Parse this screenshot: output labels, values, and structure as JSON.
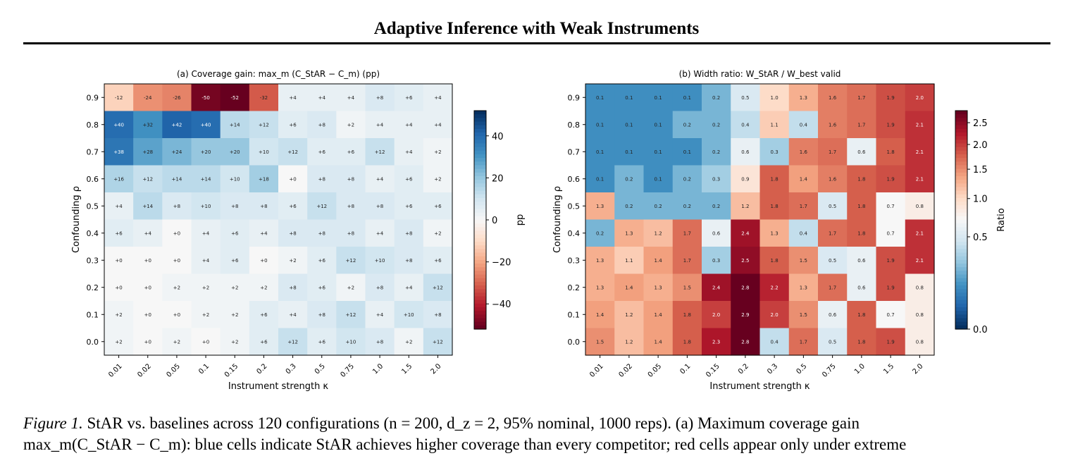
{
  "page": {
    "title": "Adaptive Inference with Weak Instruments"
  },
  "caption": {
    "label": "Figure 1.",
    "line1": "StAR vs. baselines across 120 configurations (n = 200, d_z = 2, 95% nominal, 1000 reps). (a) Maximum coverage gain",
    "line2": "max_m(C_StAR − C_m): blue cells indicate StAR achieves higher coverage than every competitor; red cells appear only under extreme"
  },
  "chart_data": [
    {
      "type": "heatmap",
      "title": "(a) Coverage gain: max_m (C_StAR − C_m) (pp)",
      "xlabel": "Instrument strength κ",
      "ylabel": "Confounding ρ",
      "x_ticks": [
        "0.01",
        "0.02",
        "0.05",
        "0.1",
        "0.15",
        "0.2",
        "0.3",
        "0.5",
        "0.75",
        "1.0",
        "1.5",
        "2.0"
      ],
      "y_ticks": [
        "0.9",
        "0.8",
        "0.7",
        "0.6",
        "0.5",
        "0.4",
        "0.3",
        "0.2",
        "0.1",
        "0.0"
      ],
      "colormap": "RdBu",
      "vmin": -52,
      "vmax": 52,
      "colorbar_label": "pp",
      "colorbar_ticks": [
        40,
        20,
        0,
        -20,
        -40
      ],
      "colorbar_tick_labels": [
        "40",
        "20",
        "0",
        "−20",
        "−40"
      ],
      "cells": [
        [
          "-12",
          "-24",
          "-26",
          "-50",
          "-52",
          "-32",
          "+4",
          "+4",
          "+4",
          "+8",
          "+6",
          "+4"
        ],
        [
          "+40",
          "+32",
          "+42",
          "+40",
          "+14",
          "+12",
          "+6",
          "+8",
          "+2",
          "+4",
          "+4",
          "+4"
        ],
        [
          "+38",
          "+28",
          "+24",
          "+20",
          "+20",
          "+10",
          "+12",
          "+6",
          "+6",
          "+12",
          "+4",
          "+2"
        ],
        [
          "+16",
          "+12",
          "+14",
          "+14",
          "+10",
          "+18",
          "+0",
          "+8",
          "+8",
          "+4",
          "+6",
          "+2"
        ],
        [
          "+4",
          "+14",
          "+8",
          "+10",
          "+8",
          "+8",
          "+6",
          "+12",
          "+8",
          "+8",
          "+6",
          "+6"
        ],
        [
          "+6",
          "+4",
          "+0",
          "+4",
          "+6",
          "+4",
          "+8",
          "+8",
          "+8",
          "+4",
          "+8",
          "+2"
        ],
        [
          "+0",
          "+0",
          "+0",
          "+4",
          "+6",
          "+0",
          "+2",
          "+6",
          "+12",
          "+10",
          "+8",
          "+6"
        ],
        [
          "+0",
          "+0",
          "+2",
          "+2",
          "+2",
          "+2",
          "+8",
          "+6",
          "+2",
          "+8",
          "+4",
          "+12"
        ],
        [
          "+2",
          "+0",
          "+0",
          "+2",
          "+2",
          "+6",
          "+4",
          "+8",
          "+12",
          "+4",
          "+10",
          "+8"
        ],
        [
          "+2",
          "+0",
          "+2",
          "+0",
          "+2",
          "+6",
          "+12",
          "+6",
          "+10",
          "+8",
          "+2",
          "+12"
        ]
      ]
    },
    {
      "type": "heatmap",
      "title": "(b) Width ratio: W_StAR / W_best valid",
      "xlabel": "Instrument strength κ",
      "ylabel": "Confounding ρ",
      "x_ticks": [
        "0.01",
        "0.02",
        "0.05",
        "0.1",
        "0.15",
        "0.2",
        "0.3",
        "0.5",
        "0.75",
        "1.0",
        "1.5",
        "2.0"
      ],
      "y_ticks": [
        "0.9",
        "0.8",
        "0.7",
        "0.6",
        "0.5",
        "0.4",
        "0.3",
        "0.2",
        "0.1",
        "0.0"
      ],
      "colormap": "RdBu_r",
      "scale": "power (gamma ≈ 0.5)",
      "vmin": 0.0,
      "vmax": 2.8,
      "colorbar_label": "Ratio",
      "colorbar_ticks": [
        2.5,
        2.0,
        1.5,
        1.0,
        0.5,
        0.0
      ],
      "colorbar_tick_labels": [
        "2.5",
        "2.0",
        "1.5",
        "1.0",
        "0.5",
        "0.0"
      ],
      "cells": [
        [
          "0.1",
          "0.1",
          "0.1",
          "0.1",
          "0.2",
          "0.5",
          "1.0",
          "1.3",
          "1.6",
          "1.7",
          "1.9",
          "2.0"
        ],
        [
          "0.1",
          "0.1",
          "0.1",
          "0.2",
          "0.2",
          "0.4",
          "1.1",
          "0.4",
          "1.6",
          "1.7",
          "1.9",
          "2.1"
        ],
        [
          "0.1",
          "0.1",
          "0.1",
          "0.1",
          "0.2",
          "0.6",
          "0.3",
          "1.6",
          "1.7",
          "0.6",
          "1.8",
          "2.1"
        ],
        [
          "0.1",
          "0.2",
          "0.1",
          "0.2",
          "0.3",
          "0.9",
          "1.8",
          "1.4",
          "1.6",
          "1.8",
          "1.9",
          "2.1"
        ],
        [
          "1.3",
          "0.2",
          "0.2",
          "0.2",
          "0.2",
          "1.2",
          "1.8",
          "1.7",
          "0.5",
          "1.8",
          "0.7",
          "0.8"
        ],
        [
          "0.2",
          "1.3",
          "1.2",
          "1.7",
          "0.6",
          "2.4",
          "1.3",
          "0.4",
          "1.7",
          "1.8",
          "0.7",
          "2.1"
        ],
        [
          "1.3",
          "1.1",
          "1.4",
          "1.7",
          "0.3",
          "2.5",
          "1.8",
          "1.5",
          "0.5",
          "0.6",
          "1.9",
          "2.1"
        ],
        [
          "1.3",
          "1.4",
          "1.3",
          "1.5",
          "2.4",
          "2.8",
          "2.2",
          "1.3",
          "1.7",
          "0.6",
          "1.9",
          "0.8"
        ],
        [
          "1.4",
          "1.2",
          "1.4",
          "1.8",
          "2.0",
          "2.9",
          "2.0",
          "1.5",
          "0.6",
          "1.8",
          "0.7",
          "0.8"
        ],
        [
          "1.5",
          "1.2",
          "1.4",
          "1.8",
          "2.3",
          "2.8",
          "0.4",
          "1.7",
          "0.5",
          "1.8",
          "1.9",
          "0.8"
        ]
      ]
    }
  ]
}
